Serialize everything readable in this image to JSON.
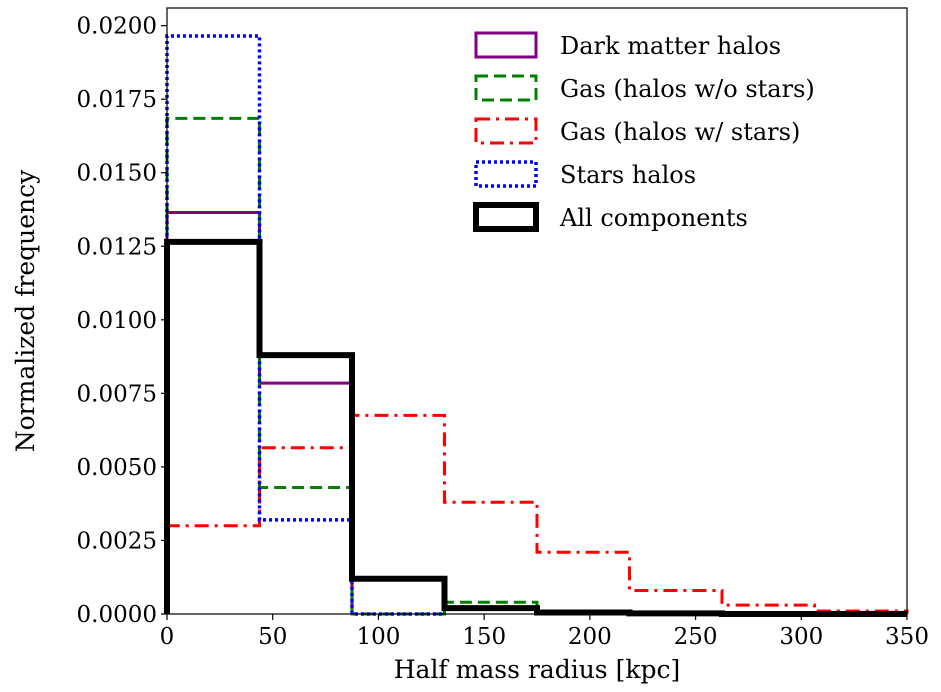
{
  "chart_data": {
    "type": "histogram",
    "xlabel": "Half mass radius [kpc]",
    "ylabel": "Normalized frequency",
    "xlim": [
      0,
      350
    ],
    "ylim": [
      0,
      0.0206
    ],
    "xticks": [
      0,
      50,
      100,
      150,
      200,
      250,
      300,
      350
    ],
    "xtick_labels": [
      "0",
      "50",
      "100",
      "150",
      "200",
      "250",
      "300",
      "350"
    ],
    "yticks": [
      0,
      0.0025,
      0.005,
      0.0075,
      0.01,
      0.0125,
      0.015,
      0.0175,
      0.02
    ],
    "ytick_labels": [
      "0.0000",
      "0.0025",
      "0.0050",
      "0.0075",
      "0.0100",
      "0.0125",
      "0.0150",
      "0.0175",
      "0.0200"
    ],
    "grid": false,
    "legend_position": "top-right",
    "series": [
      {
        "name": "Dark matter halos",
        "color": "#800080",
        "style": "solid",
        "bin_edges": [
          0,
          43.75,
          87.5
        ],
        "values": [
          0.01365,
          0.00785
        ]
      },
      {
        "name": "Gas (halos w/o stars)",
        "color": "#008000",
        "style": "dashed",
        "bin_edges": [
          0,
          43.75,
          87.5,
          131.25,
          175
        ],
        "values": [
          0.01685,
          0.0043,
          0,
          0.0004
        ]
      },
      {
        "name": "Gas (halos w/ stars)",
        "color": "#ff0000",
        "style": "dashdot",
        "bin_edges": [
          0,
          43.75,
          87.5,
          131.25,
          175,
          218.75,
          262.5,
          306.25,
          350
        ],
        "values": [
          0.003,
          0.00565,
          0.00675,
          0.0038,
          0.0021,
          0.0008,
          0.0003,
          0.0001
        ]
      },
      {
        "name": "Stars halos",
        "color": "#0000ff",
        "style": "dotted",
        "bin_edges": [
          0,
          43.75,
          87.5,
          131.25
        ],
        "values": [
          0.01965,
          0.0032,
          0
        ]
      },
      {
        "name": "All components",
        "color": "#000000",
        "style": "solid-thick",
        "bin_edges": [
          0,
          43.75,
          87.5,
          131.25,
          175,
          218.75,
          262.5,
          306.25,
          350
        ],
        "values": [
          0.01265,
          0.0088,
          0.0012,
          0.0002,
          5e-05,
          2e-05,
          0,
          0
        ]
      }
    ]
  }
}
